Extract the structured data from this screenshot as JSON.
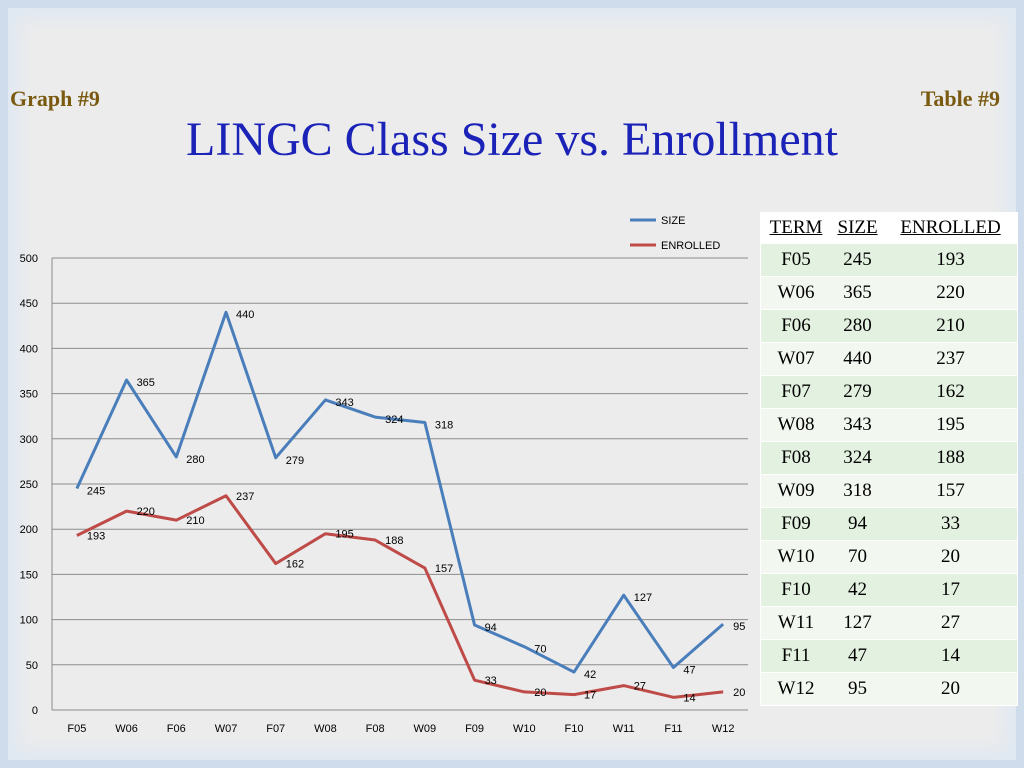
{
  "header": {
    "graph_label": "Graph #9",
    "table_label": "Table #9",
    "title": "LINGC Class Size vs. Enrollment"
  },
  "chart_data": {
    "type": "line",
    "title": "",
    "xlabel": "",
    "ylabel": "",
    "x": [
      "F05",
      "W06",
      "F06",
      "W07",
      "F07",
      "W08",
      "F08",
      "W09",
      "F09",
      "W10",
      "F10",
      "W11",
      "F11",
      "W12"
    ],
    "ylim": [
      0,
      500
    ],
    "yticks": [
      0,
      50,
      100,
      150,
      200,
      250,
      300,
      350,
      400,
      450,
      500
    ],
    "grid": true,
    "legend_position": "top-right",
    "series": [
      {
        "name": "SIZE",
        "color": "#4a7ebb",
        "values": [
          245,
          365,
          280,
          440,
          279,
          343,
          324,
          318,
          94,
          70,
          42,
          127,
          47,
          95
        ]
      },
      {
        "name": "ENROLLED",
        "color": "#be4b48",
        "values": [
          193,
          220,
          210,
          237,
          162,
          195,
          188,
          157,
          33,
          20,
          17,
          27,
          14,
          20
        ]
      }
    ]
  },
  "table": {
    "headers": [
      "TERM",
      "SIZE",
      "ENROLLED"
    ],
    "rows": [
      [
        "F05",
        "245",
        "193"
      ],
      [
        "W06",
        "365",
        "220"
      ],
      [
        "F06",
        "280",
        "210"
      ],
      [
        "W07",
        "440",
        "237"
      ],
      [
        "F07",
        "279",
        "162"
      ],
      [
        "W08",
        "343",
        "195"
      ],
      [
        "F08",
        "324",
        "188"
      ],
      [
        "W09",
        "318",
        "157"
      ],
      [
        "F09",
        "94",
        "33"
      ],
      [
        "W10",
        "70",
        "20"
      ],
      [
        "F10",
        "42",
        "17"
      ],
      [
        "W11",
        "127",
        "27"
      ],
      [
        "F11",
        "47",
        "14"
      ],
      [
        "W12",
        "95",
        "20"
      ]
    ]
  }
}
